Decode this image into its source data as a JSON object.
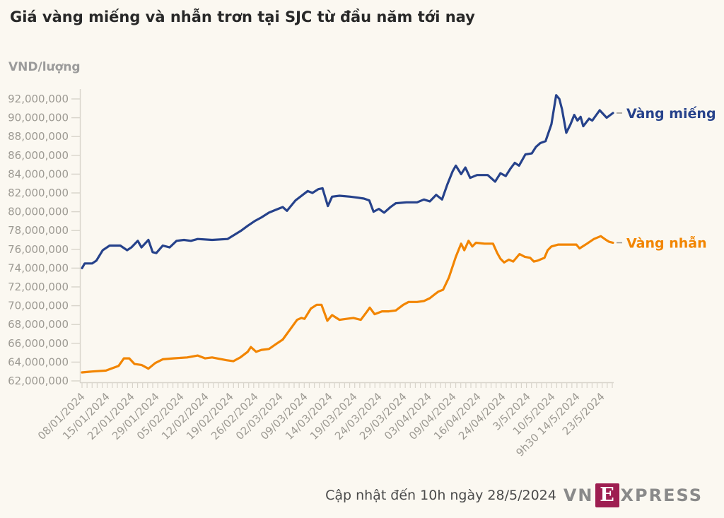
{
  "title": "Giá vàng miếng và nhẫn trơn tại SJC từ đầu năm tới nay",
  "footer": {
    "update_text": "Cập nhật đến 10h ngày 28/5/2024",
    "logo_vn": "VN",
    "logo_e": "E",
    "logo_xpress": "XPRESS"
  },
  "legend": {
    "dash": "–"
  },
  "colors": {
    "background": "#fbf8f1",
    "axis": "#d8d4cb",
    "axis_text": "#9d9a93",
    "title_text": "#282828",
    "bar_line": "#26428b",
    "ring_line": "#f28500",
    "logo_maroon": "#9e1e51",
    "logo_gray": "#8a8a8a"
  },
  "chart_data": {
    "type": "line",
    "title": "Giá vàng miếng và nhẫn trơn tại SJC từ đầu năm tới nay",
    "xlabel": "",
    "ylabel": "VND/lượng",
    "unit": "VND/lượng",
    "grid": false,
    "legend_position": "right-of-line-ends",
    "y_axis": {
      "min": 62000000,
      "max": 92000000,
      "step": 2000000,
      "ticks": [
        {
          "value": 92000000,
          "label": "92,000,000"
        },
        {
          "value": 90000000,
          "label": "90,000,000"
        },
        {
          "value": 88000000,
          "label": "88,000,000"
        },
        {
          "value": 86000000,
          "label": "86,000,000"
        },
        {
          "value": 84000000,
          "label": "84,000,000"
        },
        {
          "value": 82000000,
          "label": "82,000,000"
        },
        {
          "value": 80000000,
          "label": "80,000,000"
        },
        {
          "value": 78000000,
          "label": "78,000,000"
        },
        {
          "value": 76000000,
          "label": "76,000,000"
        },
        {
          "value": 74000000,
          "label": "74,000,000"
        },
        {
          "value": 72000000,
          "label": "72,000,000"
        },
        {
          "value": 70000000,
          "label": "70,000,000"
        },
        {
          "value": 68000000,
          "label": "68,000,000"
        },
        {
          "value": 66000000,
          "label": "66,000,000"
        },
        {
          "value": 64000000,
          "label": "64,000,000"
        },
        {
          "value": 62000000,
          "label": "62,000,000"
        }
      ]
    },
    "x_labels": [
      "08/01/2024",
      "15/01/2024",
      "22/01/2024",
      "29/01/2024",
      "05/02/2024",
      "12/02/2024",
      "19/02/2024",
      "26/02/2024",
      "02/03/2024",
      "09/03/2024",
      "14/03/2024",
      "19/03/2024",
      "24/03/2024",
      "29/03/2024",
      "03/04/2024",
      "09/04/2024",
      "16/04/2024",
      "24/04/2024",
      "3/5/2024",
      "10/5/2024",
      "9h30 14/5/2024",
      "23/5/2024"
    ],
    "x_minor_tick_count": 106,
    "series": [
      {
        "id": "vang-mieng",
        "name": "Vàng miếng",
        "color": "#26428b",
        "points": [
          [
            0,
            74000000
          ],
          [
            0.5,
            74500000
          ],
          [
            1.9,
            74500000
          ],
          [
            2.7,
            74800000
          ],
          [
            3.9,
            75900000
          ],
          [
            5.2,
            76400000
          ],
          [
            7.2,
            76400000
          ],
          [
            8.5,
            75900000
          ],
          [
            9.3,
            76200000
          ],
          [
            10.5,
            76900000
          ],
          [
            11.2,
            76200000
          ],
          [
            12.5,
            77000000
          ],
          [
            13.3,
            75700000
          ],
          [
            14,
            75600000
          ],
          [
            15.2,
            76400000
          ],
          [
            16.5,
            76200000
          ],
          [
            17.8,
            76900000
          ],
          [
            19.2,
            77000000
          ],
          [
            20.5,
            76900000
          ],
          [
            21.8,
            77100000
          ],
          [
            24.5,
            77000000
          ],
          [
            27.4,
            77100000
          ],
          [
            30,
            78000000
          ],
          [
            31.2,
            78500000
          ],
          [
            32.5,
            79000000
          ],
          [
            33.8,
            79400000
          ],
          [
            35.2,
            79900000
          ],
          [
            36.5,
            80200000
          ],
          [
            37.8,
            80500000
          ],
          [
            38.6,
            80100000
          ],
          [
            40.2,
            81200000
          ],
          [
            42.5,
            82200000
          ],
          [
            43.4,
            82000000
          ],
          [
            44.5,
            82400000
          ],
          [
            45.3,
            82500000
          ],
          [
            46.3,
            80600000
          ],
          [
            47.1,
            81600000
          ],
          [
            48.5,
            81700000
          ],
          [
            50.5,
            81600000
          ],
          [
            51.8,
            81500000
          ],
          [
            53.1,
            81400000
          ],
          [
            54.1,
            81200000
          ],
          [
            54.9,
            80000000
          ],
          [
            55.9,
            80300000
          ],
          [
            56.9,
            79900000
          ],
          [
            58.1,
            80500000
          ],
          [
            59.1,
            80900000
          ],
          [
            61.1,
            81000000
          ],
          [
            63.1,
            81000000
          ],
          [
            64.4,
            81300000
          ],
          [
            65.5,
            81100000
          ],
          [
            66.7,
            81800000
          ],
          [
            67.8,
            81300000
          ],
          [
            68.8,
            82900000
          ],
          [
            69.8,
            84300000
          ],
          [
            70.4,
            84900000
          ],
          [
            71.4,
            84000000
          ],
          [
            72.2,
            84700000
          ],
          [
            73.1,
            83600000
          ],
          [
            74.4,
            83900000
          ],
          [
            76.4,
            83900000
          ],
          [
            77.8,
            83200000
          ],
          [
            78.8,
            84100000
          ],
          [
            79.8,
            83800000
          ],
          [
            80.7,
            84600000
          ],
          [
            81.5,
            85200000
          ],
          [
            82.3,
            84900000
          ],
          [
            83.5,
            86100000
          ],
          [
            84.7,
            86200000
          ],
          [
            85.5,
            86900000
          ],
          [
            86.3,
            87300000
          ],
          [
            87.3,
            87500000
          ],
          [
            88.4,
            89300000
          ],
          [
            89.3,
            92400000
          ],
          [
            89.9,
            92000000
          ],
          [
            90.4,
            90900000
          ],
          [
            91.2,
            88400000
          ],
          [
            92,
            89300000
          ],
          [
            92.7,
            90300000
          ],
          [
            93.3,
            89700000
          ],
          [
            93.9,
            90100000
          ],
          [
            94.4,
            89100000
          ],
          [
            95.5,
            89900000
          ],
          [
            96.1,
            89700000
          ],
          [
            97.5,
            90800000
          ],
          [
            98.8,
            90000000
          ],
          [
            100,
            90500000
          ]
        ]
      },
      {
        "id": "vang-nhan",
        "name": "Vàng nhẫn",
        "color": "#f28500",
        "points": [
          [
            0,
            62900000
          ],
          [
            1.9,
            63000000
          ],
          [
            4.5,
            63100000
          ],
          [
            6.9,
            63600000
          ],
          [
            7.9,
            64400000
          ],
          [
            8.9,
            64400000
          ],
          [
            9.9,
            63800000
          ],
          [
            11.2,
            63700000
          ],
          [
            12.5,
            63300000
          ],
          [
            13.8,
            63900000
          ],
          [
            15.2,
            64300000
          ],
          [
            17.2,
            64400000
          ],
          [
            19.8,
            64500000
          ],
          [
            21.8,
            64700000
          ],
          [
            23.2,
            64400000
          ],
          [
            24.5,
            64500000
          ],
          [
            27.2,
            64200000
          ],
          [
            28.5,
            64100000
          ],
          [
            29.8,
            64500000
          ],
          [
            31.2,
            65100000
          ],
          [
            31.8,
            65600000
          ],
          [
            32.8,
            65100000
          ],
          [
            33.8,
            65300000
          ],
          [
            35.2,
            65400000
          ],
          [
            36.5,
            65900000
          ],
          [
            37.8,
            66400000
          ],
          [
            39.1,
            67400000
          ],
          [
            40.5,
            68500000
          ],
          [
            41.3,
            68700000
          ],
          [
            41.9,
            68600000
          ],
          [
            43.1,
            69700000
          ],
          [
            44.2,
            70100000
          ],
          [
            45.1,
            70100000
          ],
          [
            46.2,
            68400000
          ],
          [
            47.1,
            69000000
          ],
          [
            48.5,
            68500000
          ],
          [
            49.8,
            68600000
          ],
          [
            51.1,
            68700000
          ],
          [
            52.5,
            68500000
          ],
          [
            53.7,
            69400000
          ],
          [
            54.2,
            69800000
          ],
          [
            55.1,
            69100000
          ],
          [
            56.5,
            69400000
          ],
          [
            57.8,
            69400000
          ],
          [
            59.1,
            69500000
          ],
          [
            60.5,
            70100000
          ],
          [
            61.5,
            70400000
          ],
          [
            63.1,
            70400000
          ],
          [
            64.4,
            70500000
          ],
          [
            65.5,
            70800000
          ],
          [
            66.4,
            71200000
          ],
          [
            67.1,
            71500000
          ],
          [
            68,
            71700000
          ],
          [
            69.1,
            73000000
          ],
          [
            70.4,
            75200000
          ],
          [
            71.4,
            76600000
          ],
          [
            72,
            75900000
          ],
          [
            72.8,
            76900000
          ],
          [
            73.5,
            76300000
          ],
          [
            74.2,
            76700000
          ],
          [
            75.8,
            76600000
          ],
          [
            77.4,
            76600000
          ],
          [
            78.2,
            75600000
          ],
          [
            78.8,
            75000000
          ],
          [
            79.5,
            74600000
          ],
          [
            80.4,
            74900000
          ],
          [
            81.2,
            74700000
          ],
          [
            82.4,
            75500000
          ],
          [
            83.4,
            75200000
          ],
          [
            84.4,
            75100000
          ],
          [
            85.1,
            74700000
          ],
          [
            85.8,
            74800000
          ],
          [
            87.1,
            75100000
          ],
          [
            87.7,
            75900000
          ],
          [
            88.4,
            76300000
          ],
          [
            89.7,
            76500000
          ],
          [
            91.7,
            76500000
          ],
          [
            93.1,
            76500000
          ],
          [
            93.7,
            76100000
          ],
          [
            95.1,
            76600000
          ],
          [
            96.4,
            77100000
          ],
          [
            97.7,
            77400000
          ],
          [
            98.7,
            77000000
          ],
          [
            99.3,
            76800000
          ],
          [
            100,
            76700000
          ]
        ]
      }
    ]
  }
}
